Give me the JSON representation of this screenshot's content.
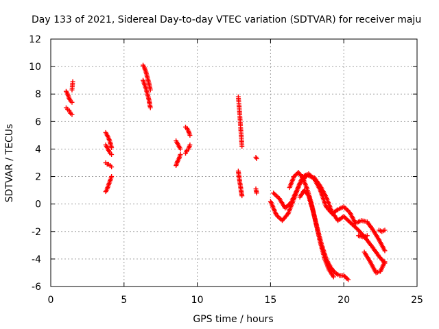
{
  "chart_data": {
    "type": "scatter",
    "title": "Day 133 of 2021, Sidereal Day-to-day VTEC variation (SDTVAR) for receiver maju",
    "xlabel": "GPS time / hours",
    "ylabel": "SDTVAR / TECUs",
    "xlim": [
      0,
      25
    ],
    "ylim": [
      -6,
      12
    ],
    "xticks": [
      0,
      5,
      10,
      15,
      20,
      25
    ],
    "yticks": [
      -6,
      -4,
      -2,
      0,
      2,
      4,
      6,
      8,
      10,
      12
    ],
    "grid": true,
    "marker": "plus",
    "color": "#ff0000",
    "segments": [
      {
        "name": "s1",
        "x": [
          1.05,
          1.15,
          1.25,
          1.35,
          1.45
        ],
        "y": [
          8.2,
          8.0,
          7.7,
          7.5,
          7.4
        ]
      },
      {
        "name": "s2",
        "x": [
          1.05,
          1.15,
          1.25,
          1.35,
          1.45
        ],
        "y": [
          7.0,
          6.9,
          6.8,
          6.6,
          6.5
        ]
      },
      {
        "name": "s3",
        "x": [
          1.45,
          1.5
        ],
        "y": [
          8.3,
          8.9
        ]
      },
      {
        "name": "s4",
        "x": [
          3.75,
          3.85,
          3.95,
          4.05,
          4.15
        ],
        "y": [
          5.2,
          5.0,
          4.8,
          4.5,
          4.1
        ]
      },
      {
        "name": "s5",
        "x": [
          3.75,
          3.85,
          3.95,
          4.05,
          4.15
        ],
        "y": [
          4.3,
          4.1,
          3.9,
          3.7,
          3.6
        ]
      },
      {
        "name": "s6",
        "x": [
          3.75,
          3.85,
          3.95,
          4.05,
          4.15
        ],
        "y": [
          3.0,
          2.9,
          2.9,
          2.8,
          2.7
        ]
      },
      {
        "name": "s7",
        "x": [
          3.75,
          3.85,
          3.95,
          4.05,
          4.15
        ],
        "y": [
          0.9,
          1.1,
          1.4,
          1.7,
          2.0
        ]
      },
      {
        "name": "s8",
        "x": [
          6.3,
          6.4,
          6.5,
          6.6,
          6.7,
          6.8
        ],
        "y": [
          10.1,
          9.9,
          9.6,
          9.2,
          8.8,
          8.3
        ]
      },
      {
        "name": "s9",
        "x": [
          6.3,
          6.4,
          6.5,
          6.6,
          6.7,
          6.8
        ],
        "y": [
          9.0,
          8.7,
          8.4,
          8.0,
          7.6,
          7.0
        ]
      },
      {
        "name": "s10",
        "x": [
          8.55,
          8.65,
          8.75,
          8.85
        ],
        "y": [
          4.6,
          4.4,
          4.2,
          4.0
        ]
      },
      {
        "name": "s11",
        "x": [
          8.55,
          8.65,
          8.75,
          8.85
        ],
        "y": [
          2.8,
          3.1,
          3.3,
          3.6
        ]
      },
      {
        "name": "s12",
        "x": [
          9.2,
          9.3,
          9.4,
          9.5
        ],
        "y": [
          5.6,
          5.5,
          5.3,
          5.0
        ]
      },
      {
        "name": "s13",
        "x": [
          9.2,
          9.3,
          9.4,
          9.5
        ],
        "y": [
          3.7,
          3.9,
          4.0,
          4.3
        ]
      },
      {
        "name": "s14",
        "x": [
          12.8,
          12.85,
          12.9,
          12.95,
          13.0,
          13.05
        ],
        "y": [
          7.8,
          7.2,
          6.5,
          5.7,
          5.0,
          4.2
        ]
      },
      {
        "name": "s15",
        "x": [
          12.8,
          12.85,
          12.9,
          12.95,
          13.0,
          13.05
        ],
        "y": [
          2.4,
          2.0,
          1.6,
          1.3,
          0.9,
          0.6
        ]
      },
      {
        "name": "s16",
        "x": [
          14.0,
          14.05
        ],
        "y": [
          3.4,
          3.3
        ]
      },
      {
        "name": "s17",
        "x": [
          14.0,
          14.05
        ],
        "y": [
          1.1,
          0.8
        ]
      },
      {
        "name": "s18",
        "x": [
          15.0,
          15.4,
          15.8,
          16.2,
          16.6,
          17.0,
          17.5,
          18.0,
          18.4,
          18.8,
          19.2,
          19.6,
          20.0,
          20.5,
          21.0,
          21.5,
          22.0,
          22.4,
          22.8
        ],
        "y": [
          0.2,
          -0.8,
          -1.2,
          -0.7,
          0.4,
          1.5,
          2.1,
          1.9,
          1.3,
          0.5,
          -0.6,
          -1.2,
          -0.9,
          -1.4,
          -1.9,
          -2.5,
          -3.2,
          -3.8,
          -4.3
        ]
      },
      {
        "name": "s19",
        "x": [
          15.2,
          15.6,
          16.0,
          16.4,
          16.8,
          17.2,
          17.6,
          18.0,
          18.4,
          18.8,
          19.2,
          19.6,
          20.0,
          20.4,
          20.8,
          21.2,
          21.6,
          22.0,
          22.4,
          22.8
        ],
        "y": [
          0.8,
          0.4,
          -0.3,
          0.1,
          1.0,
          2.0,
          2.2,
          1.8,
          1.0,
          -0.2,
          -0.7,
          -0.4,
          -0.2,
          -0.6,
          -1.4,
          -1.2,
          -1.3,
          -1.9,
          -2.6,
          -3.4
        ]
      },
      {
        "name": "s20",
        "x": [
          16.3,
          16.6,
          16.9,
          17.2,
          17.5,
          17.8,
          18.1,
          18.4,
          18.7,
          19.0,
          19.3
        ],
        "y": [
          1.2,
          2.0,
          2.3,
          1.9,
          1.1,
          0.0,
          -1.4,
          -2.8,
          -4.0,
          -4.8,
          -5.3
        ]
      },
      {
        "name": "s21",
        "x": [
          17.0,
          17.3,
          17.6,
          17.9,
          18.2,
          18.5,
          18.8,
          19.1,
          19.4,
          19.7,
          20.0,
          20.3
        ],
        "y": [
          0.5,
          1.0,
          0.6,
          -0.5,
          -1.8,
          -3.0,
          -4.0,
          -4.6,
          -5.0,
          -5.2,
          -5.2,
          -5.5
        ]
      },
      {
        "name": "s22",
        "x": [
          21.0,
          21.3,
          21.6
        ],
        "y": [
          -2.3,
          -2.4,
          -2.3
        ]
      },
      {
        "name": "s23",
        "x": [
          21.4,
          21.8,
          22.2,
          22.5,
          22.8
        ],
        "y": [
          -3.5,
          -4.2,
          -5.0,
          -4.9,
          -4.2
        ]
      },
      {
        "name": "s24",
        "x": [
          22.4,
          22.6,
          22.8
        ],
        "y": [
          -1.9,
          -2.0,
          -1.9
        ]
      }
    ]
  }
}
